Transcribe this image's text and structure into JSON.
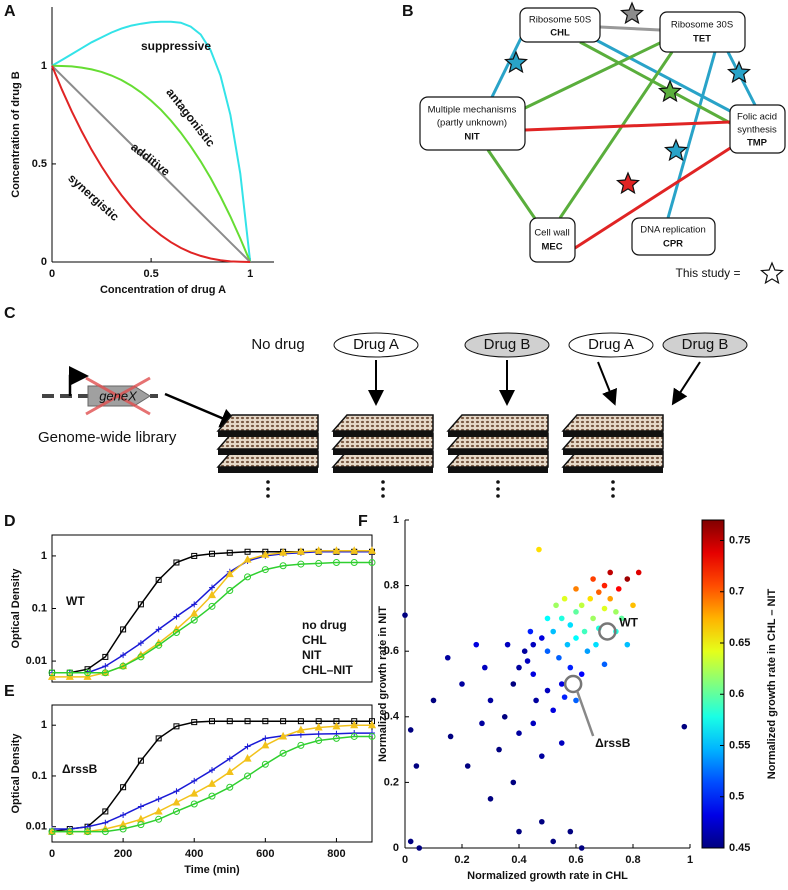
{
  "panel_labels": [
    "A",
    "B",
    "C",
    "D",
    "E",
    "F"
  ],
  "chart_data": [
    {
      "type": "line",
      "x_label": "Concentration of drug A",
      "y_label": "Concentration of drug B",
      "x": [
        0,
        0.05,
        0.1,
        0.15,
        0.2,
        0.25,
        0.3,
        0.35,
        0.4,
        0.45,
        0.5,
        0.55,
        0.6,
        0.65,
        0.7,
        0.75,
        0.8,
        0.85,
        0.9,
        0.95,
        1
      ],
      "series": [
        {
          "name": "suppressive",
          "color": "#33e3e8",
          "values": [
            1,
            1.03,
            1.06,
            1.09,
            1.12,
            1.145,
            1.17,
            1.19,
            1.205,
            1.215,
            1.222,
            1.225,
            1.225,
            1.22,
            1.2,
            1.16,
            1.08,
            0.95,
            0.75,
            0.45,
            0
          ]
        },
        {
          "name": "antagonistic",
          "color": "#66dd33",
          "values": [
            1,
            0.999,
            0.997,
            0.991,
            0.982,
            0.969,
            0.951,
            0.928,
            0.899,
            0.864,
            0.823,
            0.776,
            0.721,
            0.659,
            0.59,
            0.513,
            0.428,
            0.334,
            0.232,
            0.12,
            0
          ]
        },
        {
          "name": "additive",
          "color": "#8c8c8c",
          "values": [
            1,
            0.95,
            0.9,
            0.85,
            0.8,
            0.75,
            0.7,
            0.65,
            0.6,
            0.55,
            0.5,
            0.45,
            0.4,
            0.35,
            0.3,
            0.25,
            0.2,
            0.15,
            0.1,
            0.05,
            0
          ]
        },
        {
          "name": "synergistic",
          "color": "#e02424",
          "values": [
            1,
            0.879,
            0.768,
            0.666,
            0.572,
            0.487,
            0.41,
            0.341,
            0.279,
            0.224,
            0.177,
            0.136,
            0.101,
            0.072,
            0.049,
            0.031,
            0.018,
            0.009,
            0.003,
            0.001,
            0
          ]
        }
      ],
      "xlim": [
        0,
        1.12
      ],
      "ylim": [
        0,
        1.3
      ],
      "xticks": [
        0,
        0.5,
        1
      ],
      "yticks": [
        0,
        0.5,
        1
      ]
    },
    {
      "type": "line",
      "log_y": true,
      "y_label": "Optical Density",
      "annotation": "WT",
      "x": [
        0,
        50,
        100,
        150,
        200,
        250,
        300,
        350,
        400,
        450,
        500,
        550,
        600,
        650,
        700,
        750,
        800,
        850,
        900
      ],
      "series": [
        {
          "name": "no drug",
          "color": "#000000",
          "marker": "square",
          "values": [
            0.006,
            0.006,
            0.007,
            0.012,
            0.04,
            0.12,
            0.35,
            0.75,
            1.0,
            1.1,
            1.15,
            1.2,
            1.2,
            1.2,
            1.2,
            1.2,
            1.2,
            1.2,
            1.2
          ]
        },
        {
          "name": "CHL",
          "color": "#1a1ad6",
          "marker": "plus",
          "values": [
            0.006,
            0.006,
            0.006,
            0.008,
            0.013,
            0.022,
            0.04,
            0.07,
            0.12,
            0.25,
            0.5,
            0.8,
            1.0,
            1.1,
            1.15,
            1.2,
            1.2,
            1.2,
            1.2
          ]
        },
        {
          "name": "NIT",
          "color": "#f2c21b",
          "marker": "triangle",
          "values": [
            0.005,
            0.005,
            0.005,
            0.006,
            0.008,
            0.013,
            0.022,
            0.04,
            0.08,
            0.18,
            0.45,
            0.85,
            1.05,
            1.15,
            1.2,
            1.25,
            1.25,
            1.25,
            1.25
          ]
        },
        {
          "name": "CHL–NIT",
          "color": "#2fcf2f",
          "marker": "circle",
          "values": [
            0.006,
            0.006,
            0.006,
            0.006,
            0.008,
            0.012,
            0.02,
            0.035,
            0.06,
            0.11,
            0.22,
            0.4,
            0.55,
            0.65,
            0.7,
            0.72,
            0.75,
            0.75,
            0.75
          ]
        }
      ],
      "xlim": [
        0,
        900
      ],
      "ylim": [
        0.004,
        2.5
      ],
      "yticks": [
        0.01,
        0.1,
        1
      ]
    },
    {
      "type": "line",
      "log_y": true,
      "y_label": "Optical Density",
      "x_label": "Time (min)",
      "annotation": "ΔrssB",
      "x": [
        0,
        50,
        100,
        150,
        200,
        250,
        300,
        350,
        400,
        450,
        500,
        550,
        600,
        650,
        700,
        750,
        800,
        850,
        900
      ],
      "series": [
        {
          "color": "#000000",
          "marker": "square",
          "values": [
            0.008,
            0.009,
            0.01,
            0.02,
            0.06,
            0.2,
            0.55,
            0.95,
            1.15,
            1.2,
            1.2,
            1.2,
            1.2,
            1.2,
            1.2,
            1.2,
            1.2,
            1.2,
            1.2
          ]
        },
        {
          "color": "#1a1ad6",
          "marker": "plus",
          "values": [
            0.009,
            0.009,
            0.01,
            0.012,
            0.017,
            0.025,
            0.035,
            0.05,
            0.08,
            0.13,
            0.22,
            0.38,
            0.55,
            0.62,
            0.65,
            0.67,
            0.68,
            0.7,
            0.7
          ]
        },
        {
          "color": "#f2c21b",
          "marker": "triangle",
          "values": [
            0.008,
            0.008,
            0.008,
            0.009,
            0.011,
            0.014,
            0.02,
            0.03,
            0.045,
            0.07,
            0.12,
            0.22,
            0.4,
            0.6,
            0.8,
            0.9,
            0.95,
            1.0,
            1.0
          ]
        },
        {
          "color": "#2fcf2f",
          "marker": "circle",
          "values": [
            0.008,
            0.008,
            0.008,
            0.008,
            0.009,
            0.011,
            0.014,
            0.02,
            0.028,
            0.04,
            0.06,
            0.1,
            0.17,
            0.28,
            0.4,
            0.5,
            0.55,
            0.6,
            0.6
          ]
        }
      ],
      "xlim": [
        0,
        900
      ],
      "ylim": [
        0.005,
        2.5
      ],
      "xticks": [
        0,
        200,
        400,
        600,
        800
      ],
      "yticks": [
        0.01,
        0.1,
        1
      ]
    },
    {
      "type": "scatter",
      "x_label": "Normalized growth rate in CHL",
      "y_label": "Normalized growth rate in NIT",
      "colorbar_label": "Normalized growth rate in CHL – NIT",
      "colormap": "jet",
      "x": [
        0.45,
        0.42,
        0.48,
        0.4,
        0.38,
        0.44,
        0.5,
        0.52,
        0.55,
        0.58,
        0.6,
        0.62,
        0.65,
        0.68,
        0.7,
        0.72,
        0.75,
        0.78,
        0.66,
        0.63,
        0.57,
        0.54,
        0.6,
        0.7,
        0.74,
        0.76,
        0.68,
        0.64,
        0.58,
        0.62,
        0.55,
        0.5,
        0.46,
        0.35,
        0.3,
        0.28,
        0.25,
        0.2,
        0.15,
        0.1,
        0.33,
        0.4,
        0.45,
        0.52,
        0.6,
        0.22,
        0.48,
        0.55,
        0.38,
        0.3,
        0.0,
        0.02,
        0.04,
        0.02,
        0.05,
        0.4,
        0.48,
        0.52,
        0.62,
        0.58,
        0.98,
        0.47,
        0.82,
        0.8,
        0.72,
        0.66,
        0.53,
        0.5,
        0.43,
        0.36,
        0.74,
        0.78,
        0.67,
        0.45,
        0.56,
        0.7,
        0.16,
        0.27,
        0.6,
        0.56
      ],
      "values": [
        0.62,
        0.6,
        0.64,
        0.55,
        0.5,
        0.66,
        0.6,
        0.66,
        0.7,
        0.68,
        0.72,
        0.74,
        0.76,
        0.78,
        0.8,
        0.76,
        0.79,
        0.82,
        0.7,
        0.66,
        0.62,
        0.58,
        0.64,
        0.73,
        0.72,
        0.7,
        0.67,
        0.6,
        0.55,
        0.53,
        0.5,
        0.48,
        0.45,
        0.4,
        0.45,
        0.55,
        0.62,
        0.5,
        0.58,
        0.45,
        0.3,
        0.35,
        0.38,
        0.42,
        0.45,
        0.25,
        0.28,
        0.32,
        0.2,
        0.15,
        0.71,
        0.36,
        0.25,
        0.02,
        0.0,
        0.05,
        0.08,
        0.02,
        0.0,
        0.05,
        0.37,
        0.91,
        0.84,
        0.74,
        0.84,
        0.82,
        0.74,
        0.7,
        0.57,
        0.62,
        0.66,
        0.62,
        0.62,
        0.53,
        0.46,
        0.56,
        0.34,
        0.38,
        0.79,
        0.76
      ],
      "color_values": [
        0.47,
        0.46,
        0.48,
        0.46,
        0.45,
        0.5,
        0.52,
        0.55,
        0.58,
        0.56,
        0.6,
        0.63,
        0.66,
        0.7,
        0.72,
        0.68,
        0.73,
        0.76,
        0.62,
        0.59,
        0.55,
        0.52,
        0.57,
        0.64,
        0.62,
        0.6,
        0.58,
        0.54,
        0.5,
        0.49,
        0.48,
        0.47,
        0.46,
        0.45,
        0.46,
        0.47,
        0.48,
        0.46,
        0.46,
        0.45,
        0.45,
        0.46,
        0.47,
        0.48,
        0.52,
        0.45,
        0.46,
        0.47,
        0.45,
        0.45,
        0.45,
        0.45,
        0.45,
        0.45,
        0.45,
        0.45,
        0.45,
        0.45,
        0.45,
        0.45,
        0.45,
        0.66,
        0.74,
        0.67,
        0.75,
        0.71,
        0.62,
        0.57,
        0.47,
        0.47,
        0.58,
        0.55,
        0.56,
        0.48,
        0.5,
        0.52,
        0.45,
        0.46,
        0.69,
        0.64
      ],
      "highlights": [
        {
          "label": "WT",
          "x": 0.71,
          "y": 0.66
        },
        {
          "label": "ΔrssB",
          "x": 0.59,
          "y": 0.5
        }
      ],
      "xlim": [
        0,
        1
      ],
      "ylim": [
        0,
        1
      ],
      "xticks": [
        0,
        0.2,
        0.4,
        0.6,
        0.8,
        1
      ],
      "yticks": [
        0,
        0.2,
        0.4,
        0.6,
        0.8,
        1
      ],
      "clim": [
        0.45,
        0.77
      ],
      "cticks": [
        0.45,
        0.5,
        0.55,
        0.6,
        0.65,
        0.7,
        0.75
      ]
    }
  ],
  "diagram_b": {
    "nodes": [
      {
        "lines": [
          "Ribosome 50S"
        ],
        "code": "CHL"
      },
      {
        "lines": [
          "Ribosome 30S"
        ],
        "code": "TET"
      },
      {
        "lines": [
          "Multiple mechanisms",
          "(partly unknown)"
        ],
        "code": "NIT"
      },
      {
        "lines": [
          "Folic acid",
          "synthesis"
        ],
        "code": "TMP"
      },
      {
        "lines": [
          "Cell wall"
        ],
        "code": "MEC"
      },
      {
        "lines": [
          "DNA replication"
        ],
        "code": "CPR"
      }
    ],
    "legend": "This study ="
  },
  "schematic_c": {
    "gene": "geneX",
    "library": "Genome-wide library",
    "conditions": [
      "No drug",
      "Drug A",
      "Drug B",
      "Drug A",
      "Drug B"
    ]
  }
}
